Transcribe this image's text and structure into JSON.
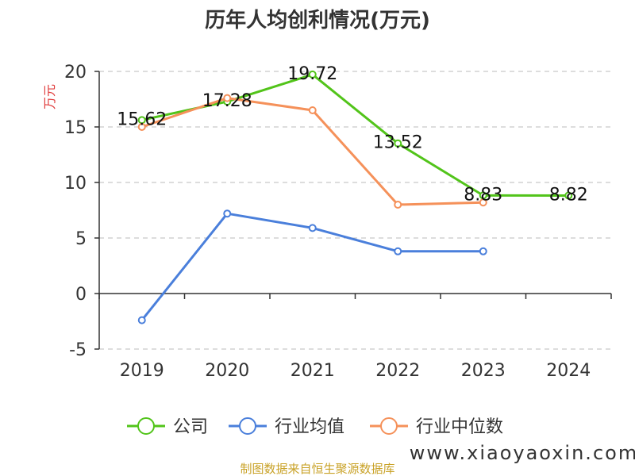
{
  "chart_data": {
    "type": "line",
    "title": "历年人均创利情况(万元)",
    "ylabel": "万元",
    "xlabel": "",
    "categories": [
      "2019",
      "2020",
      "2021",
      "2022",
      "2023",
      "2024"
    ],
    "ylim": [
      -5,
      20
    ],
    "yticks": [
      "-5",
      "0",
      "5",
      "10",
      "15",
      "20"
    ],
    "grid": true,
    "legend_position": "bottom",
    "series": [
      {
        "name": "公司",
        "color": "#52c41a",
        "values": [
          15.62,
          17.28,
          19.72,
          13.52,
          8.83,
          8.82
        ],
        "labels": [
          "15.62",
          "17.28",
          "19.72",
          "13.52",
          "8.83",
          "8.82"
        ]
      },
      {
        "name": "行业均值",
        "color": "#4a7fdb",
        "values": [
          -2.4,
          7.2,
          5.9,
          3.8,
          3.8,
          null
        ]
      },
      {
        "name": "行业中位数",
        "color": "#f5915a",
        "values": [
          15.0,
          17.6,
          16.5,
          8.0,
          8.2,
          null
        ]
      }
    ]
  },
  "footer": {
    "source": "制图数据来自恒生聚源数据库",
    "watermark": "www.xiaoyaoxin.com"
  }
}
